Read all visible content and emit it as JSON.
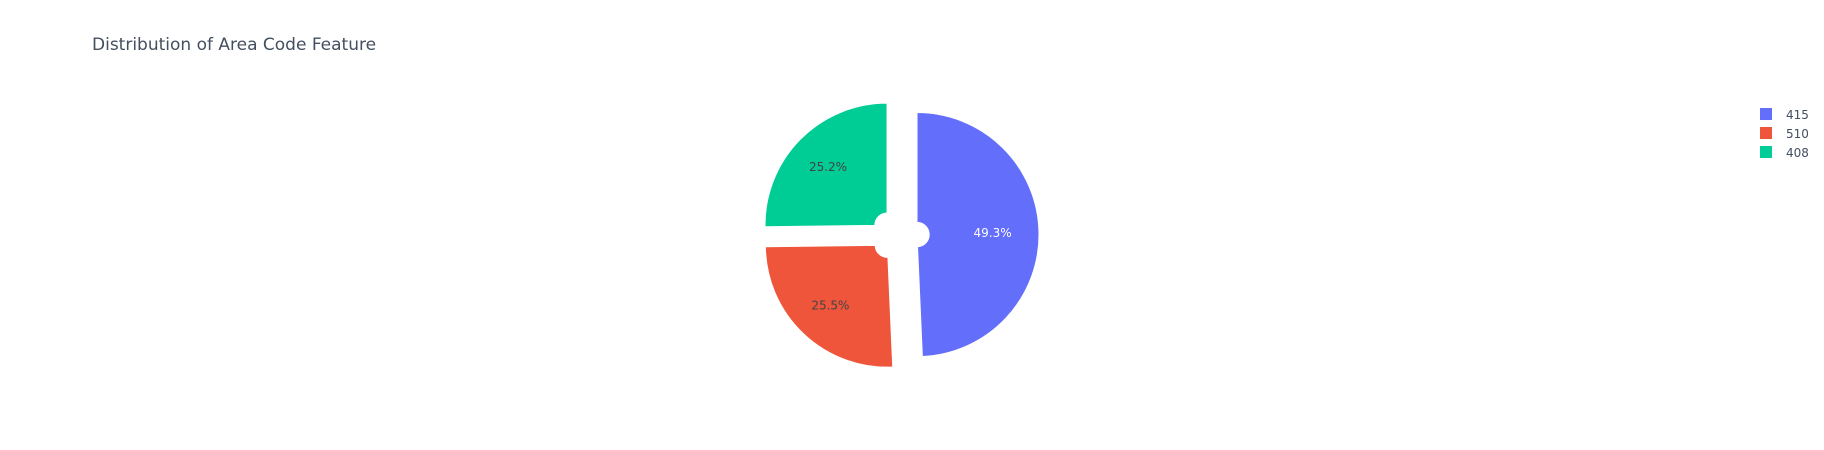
{
  "chart_data": {
    "type": "pie",
    "title": "Distribution of Area Code Feature",
    "categories": [
      "415",
      "510",
      "408"
    ],
    "values": [
      49.3,
      25.5,
      25.2
    ],
    "labels": [
      "49.3%",
      "25.5%",
      "25.2%"
    ],
    "colors": [
      "#636efa",
      "#ef553b",
      "#00cc96"
    ],
    "label_colors": [
      "#ffffff",
      "#444444",
      "#444444"
    ],
    "hole": 0.1,
    "pulled_slices": true,
    "direction": "clockwise",
    "legend": {
      "position": "top-right",
      "items": [
        "415",
        "510",
        "408"
      ]
    }
  }
}
